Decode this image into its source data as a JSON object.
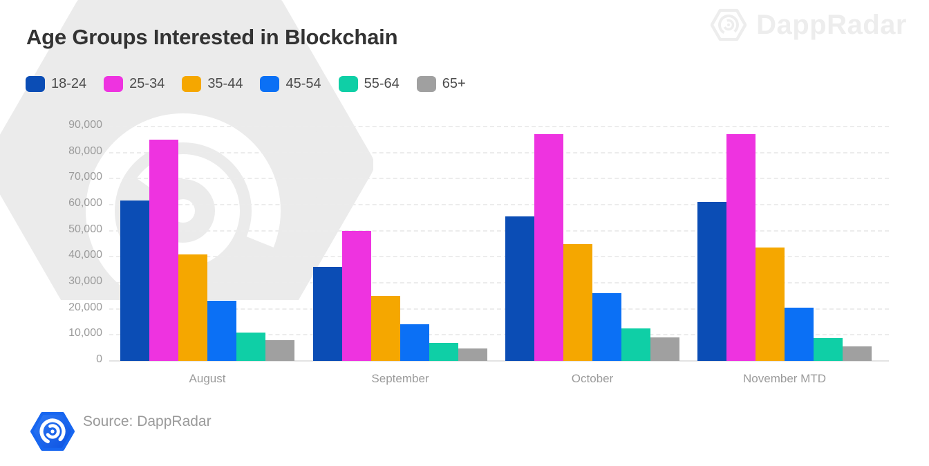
{
  "header": {
    "title": "Age Groups Interested in Blockchain"
  },
  "watermark": {
    "brand": "DappRadar"
  },
  "footer": {
    "source_label": "Source: DappRadar"
  },
  "icons": {
    "watermark_logo": "dappradar-hexagon-spiral",
    "footer_logo": "dappradar-hexagon-spiral"
  },
  "chart_data": {
    "type": "bar",
    "title": "Age Groups Interested in Blockchain",
    "categories": [
      "August",
      "September",
      "October",
      "November MTD"
    ],
    "series": [
      {
        "name": "18-24",
        "color": "#0b4db5",
        "values": [
          61500,
          36000,
          55500,
          61000
        ]
      },
      {
        "name": "25-34",
        "color": "#ee33e0",
        "values": [
          85000,
          50000,
          87000,
          87000
        ]
      },
      {
        "name": "35-44",
        "color": "#f5a700",
        "values": [
          41000,
          25000,
          45000,
          43500
        ]
      },
      {
        "name": "45-54",
        "color": "#0b70f5",
        "values": [
          23000,
          14000,
          26000,
          20500
        ]
      },
      {
        "name": "55-64",
        "color": "#0fcfa6",
        "values": [
          11000,
          6800,
          12500,
          8700
        ]
      },
      {
        "name": "65+",
        "color": "#a0a0a0",
        "values": [
          8000,
          4800,
          9000,
          5500
        ]
      }
    ],
    "xlabel": "",
    "ylabel": "",
    "ylim": [
      0,
      90000
    ],
    "ytick_step": 10000,
    "ytick_labels": [
      "0",
      "10,000",
      "20,000",
      "30,000",
      "40,000",
      "50,000",
      "60,000",
      "70,000",
      "80,000",
      "90,000"
    ],
    "grid": "horizontal-dashed",
    "legend_position": "top-left"
  }
}
